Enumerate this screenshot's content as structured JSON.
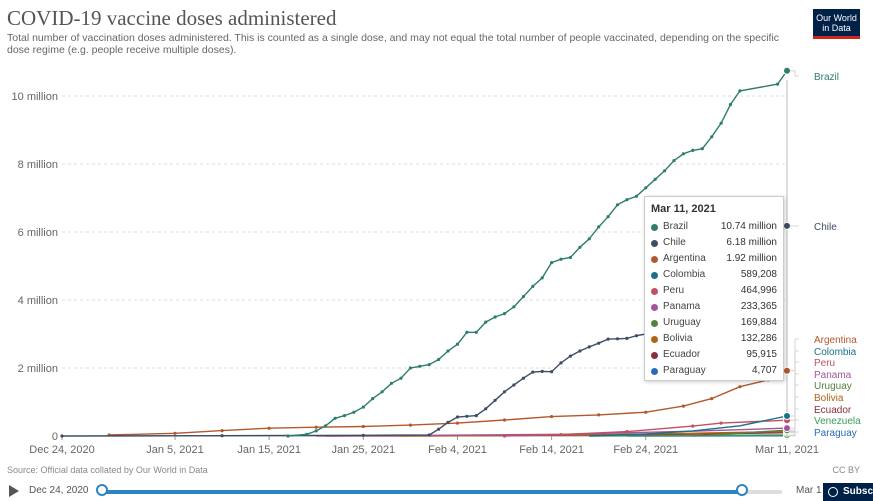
{
  "header": {
    "title": "COVID-19 vaccine doses administered",
    "subtitle": "Total number of vaccination doses administered. This is counted as a single dose, and may not equal the total number of people vaccinated, depending on the specific dose regime (e.g. people receive multiple doses).",
    "logo_line1": "Our World",
    "logo_line2": "in Data"
  },
  "footer": {
    "source": "Source: Official data collated by Our World in Data",
    "license": "CC BY"
  },
  "timeline": {
    "start_label": "Dec 24, 2020",
    "end_label": "Mar 1",
    "subscribe_label": "Subscribe"
  },
  "tooltip": {
    "date": "Mar 11, 2021",
    "rows": [
      {
        "name": "Brazil",
        "value": "10.74 million",
        "color": "#2f7d6d"
      },
      {
        "name": "Chile",
        "value": "6.18 million",
        "color": "#3c4e66"
      },
      {
        "name": "Argentina",
        "value": "1.92 million",
        "color": "#b2592d"
      },
      {
        "name": "Colombia",
        "value": "589,208",
        "color": "#18728a"
      },
      {
        "name": "Peru",
        "value": "464,996",
        "color": "#c15065"
      },
      {
        "name": "Panama",
        "value": "233,365",
        "color": "#a2559c"
      },
      {
        "name": "Uruguay",
        "value": "169,884",
        "color": "#578145"
      },
      {
        "name": "Bolivia",
        "value": "132,286",
        "color": "#b16214"
      },
      {
        "name": "Ecuador",
        "value": "95,915",
        "color": "#883039"
      },
      {
        "name": "Paraguay",
        "value": "4,707",
        "color": "#286bbb"
      }
    ]
  },
  "chart_data": {
    "type": "line",
    "title": "COVID-19 vaccine doses administered",
    "x_ticks": [
      "Dec 24, 2020",
      "Jan 5, 2021",
      "Jan 15, 2021",
      "Jan 25, 2021",
      "Feb 4, 2021",
      "Feb 14, 2021",
      "Feb 24, 2021",
      "Mar 11, 2021"
    ],
    "x_range": [
      "2020-12-24",
      "2021-03-11"
    ],
    "y_ticks": [
      0,
      2000000,
      4000000,
      6000000,
      8000000,
      10000000
    ],
    "y_tick_labels": [
      "0",
      "2 million",
      "4 million",
      "6 million",
      "8 million",
      "10 million"
    ],
    "ylim": [
      0,
      11000000
    ],
    "grid": true,
    "legend_placement": "right",
    "series": [
      {
        "name": "Brazil",
        "color": "#2f7d6d",
        "points": [
          [
            "2021-01-17",
            0
          ],
          [
            "2021-01-19",
            50000
          ],
          [
            "2021-01-20",
            150000
          ],
          [
            "2021-01-21",
            300000
          ],
          [
            "2021-01-22",
            520000
          ],
          [
            "2021-01-23",
            600000
          ],
          [
            "2021-01-24",
            700000
          ],
          [
            "2021-01-25",
            850000
          ],
          [
            "2021-01-26",
            1100000
          ],
          [
            "2021-01-27",
            1300000
          ],
          [
            "2021-01-28",
            1550000
          ],
          [
            "2021-01-29",
            1700000
          ],
          [
            "2021-01-30",
            2000000
          ],
          [
            "2021-01-31",
            2050000
          ],
          [
            "2021-02-01",
            2100000
          ],
          [
            "2021-02-02",
            2250000
          ],
          [
            "2021-02-03",
            2500000
          ],
          [
            "2021-02-04",
            2700000
          ],
          [
            "2021-02-05",
            3050000
          ],
          [
            "2021-02-06",
            3050000
          ],
          [
            "2021-02-07",
            3350000
          ],
          [
            "2021-02-08",
            3500000
          ],
          [
            "2021-02-09",
            3600000
          ],
          [
            "2021-02-10",
            3800000
          ],
          [
            "2021-02-11",
            4100000
          ],
          [
            "2021-02-12",
            4400000
          ],
          [
            "2021-02-13",
            4650000
          ],
          [
            "2021-02-14",
            5100000
          ],
          [
            "2021-02-15",
            5200000
          ],
          [
            "2021-02-16",
            5250000
          ],
          [
            "2021-02-17",
            5550000
          ],
          [
            "2021-02-18",
            5800000
          ],
          [
            "2021-02-19",
            6150000
          ],
          [
            "2021-02-20",
            6450000
          ],
          [
            "2021-02-21",
            6800000
          ],
          [
            "2021-02-22",
            6950000
          ],
          [
            "2021-02-23",
            7050000
          ],
          [
            "2021-02-24",
            7300000
          ],
          [
            "2021-02-25",
            7550000
          ],
          [
            "2021-02-26",
            7800000
          ],
          [
            "2021-02-27",
            8100000
          ],
          [
            "2021-02-28",
            8300000
          ],
          [
            "2021-03-01",
            8400000
          ],
          [
            "2021-03-02",
            8450000
          ],
          [
            "2021-03-03",
            8800000
          ],
          [
            "2021-03-04",
            9200000
          ],
          [
            "2021-03-05",
            9750000
          ],
          [
            "2021-03-06",
            10150000
          ],
          [
            "2021-03-10",
            10350000
          ],
          [
            "2021-03-11",
            10740000
          ]
        ]
      },
      {
        "name": "Chile",
        "color": "#3c4e66",
        "points": [
          [
            "2020-12-24",
            0
          ],
          [
            "2021-01-10",
            10000
          ],
          [
            "2021-01-25",
            20000
          ],
          [
            "2021-02-01",
            30000
          ],
          [
            "2021-02-02",
            200000
          ],
          [
            "2021-02-03",
            400000
          ],
          [
            "2021-02-04",
            560000
          ],
          [
            "2021-02-05",
            580000
          ],
          [
            "2021-02-06",
            600000
          ],
          [
            "2021-02-07",
            800000
          ],
          [
            "2021-02-08",
            1050000
          ],
          [
            "2021-02-09",
            1300000
          ],
          [
            "2021-02-10",
            1500000
          ],
          [
            "2021-02-11",
            1700000
          ],
          [
            "2021-02-12",
            1880000
          ],
          [
            "2021-02-13",
            1900000
          ],
          [
            "2021-02-14",
            1890000
          ],
          [
            "2021-02-15",
            2150000
          ],
          [
            "2021-02-16",
            2350000
          ],
          [
            "2021-02-17",
            2500000
          ],
          [
            "2021-02-18",
            2620000
          ],
          [
            "2021-02-19",
            2730000
          ],
          [
            "2021-02-20",
            2850000
          ],
          [
            "2021-02-21",
            2860000
          ],
          [
            "2021-02-22",
            2870000
          ],
          [
            "2021-02-23",
            2950000
          ],
          [
            "2021-02-24",
            3000000
          ],
          [
            "2021-02-25",
            3050000
          ],
          [
            "2021-02-26",
            3150000
          ],
          [
            "2021-02-27",
            3200000
          ],
          [
            "2021-03-11",
            6180000
          ]
        ]
      },
      {
        "name": "Argentina",
        "color": "#b2592d",
        "points": [
          [
            "2020-12-29",
            30000
          ],
          [
            "2021-01-05",
            80000
          ],
          [
            "2021-01-10",
            160000
          ],
          [
            "2021-01-15",
            230000
          ],
          [
            "2021-01-20",
            260000
          ],
          [
            "2021-01-25",
            280000
          ],
          [
            "2021-01-30",
            320000
          ],
          [
            "2021-02-04",
            380000
          ],
          [
            "2021-02-09",
            470000
          ],
          [
            "2021-02-14",
            570000
          ],
          [
            "2021-02-19",
            620000
          ],
          [
            "2021-02-24",
            700000
          ],
          [
            "2021-02-28",
            880000
          ],
          [
            "2021-03-03",
            1100000
          ],
          [
            "2021-03-06",
            1450000
          ],
          [
            "2021-03-09",
            1650000
          ],
          [
            "2021-03-11",
            1920000
          ]
        ]
      },
      {
        "name": "Colombia",
        "color": "#18728a",
        "points": [
          [
            "2021-02-18",
            0
          ],
          [
            "2021-02-24",
            60000
          ],
          [
            "2021-03-01",
            150000
          ],
          [
            "2021-03-06",
            300000
          ],
          [
            "2021-03-11",
            589208
          ]
        ]
      },
      {
        "name": "Peru",
        "color": "#c15065",
        "points": [
          [
            "2021-02-09",
            0
          ],
          [
            "2021-02-15",
            40000
          ],
          [
            "2021-02-22",
            130000
          ],
          [
            "2021-03-01",
            290000
          ],
          [
            "2021-03-04",
            380000
          ],
          [
            "2021-03-11",
            464996
          ]
        ]
      },
      {
        "name": "Panama",
        "color": "#a2559c",
        "points": [
          [
            "2021-01-20",
            0
          ],
          [
            "2021-02-01",
            20000
          ],
          [
            "2021-02-15",
            50000
          ],
          [
            "2021-03-01",
            140000
          ],
          [
            "2021-03-11",
            233365
          ]
        ]
      },
      {
        "name": "Uruguay",
        "color": "#578145",
        "points": [
          [
            "2021-03-01",
            0
          ],
          [
            "2021-03-04",
            50000
          ],
          [
            "2021-03-08",
            120000
          ],
          [
            "2021-03-11",
            169884
          ]
        ]
      },
      {
        "name": "Bolivia",
        "color": "#b16214",
        "points": [
          [
            "2021-01-29",
            0
          ],
          [
            "2021-02-10",
            15000
          ],
          [
            "2021-02-25",
            60000
          ],
          [
            "2021-03-11",
            132286
          ]
        ]
      },
      {
        "name": "Ecuador",
        "color": "#883039",
        "points": [
          [
            "2021-01-21",
            0
          ],
          [
            "2021-02-05",
            5000
          ],
          [
            "2021-02-25",
            40000
          ],
          [
            "2021-03-11",
            95915
          ]
        ]
      },
      {
        "name": "Venezuela",
        "color": "#3b9c5c",
        "points": [
          [
            "2021-02-18",
            0
          ],
          [
            "2021-03-11",
            30000
          ]
        ]
      },
      {
        "name": "Paraguay",
        "color": "#286bbb",
        "points": [
          [
            "2021-02-22",
            0
          ],
          [
            "2021-03-11",
            4707
          ]
        ]
      }
    ],
    "end_labels": [
      "Brazil",
      "Chile",
      "Argentina",
      "Colombia",
      "Peru",
      "Panama",
      "Uruguay",
      "Bolivia",
      "Ecuador",
      "Venezuela",
      "Paraguay"
    ]
  }
}
